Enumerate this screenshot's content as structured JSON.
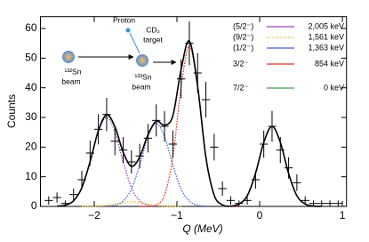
{
  "chart_data": {
    "type": "scatter",
    "x_label": "Q (MeV)",
    "y_label": "Counts",
    "xlim": [
      -2.65,
      1.05
    ],
    "ylim": [
      0,
      64
    ],
    "xticks": [
      {
        "value": -2,
        "label": "−2"
      },
      {
        "value": -1,
        "label": "−1"
      },
      0,
      1
    ],
    "yticks": [
      0,
      10,
      20,
      30,
      40,
      50,
      60
    ],
    "data": {
      "color": "#000000",
      "x_error": 0.05,
      "x": [
        -2.55,
        -2.45,
        -2.35,
        -2.25,
        -2.15,
        -2.05,
        -1.95,
        -1.85,
        -1.75,
        -1.65,
        -1.55,
        -1.45,
        -1.35,
        -1.25,
        -1.15,
        -1.05,
        -0.95,
        -0.85,
        -0.75,
        -0.65,
        -0.55,
        -0.45,
        -0.35,
        -0.25,
        -0.15,
        -0.05,
        0.05,
        0.15,
        0.25,
        0.35,
        0.45,
        0.55,
        0.65,
        0.75,
        0.85,
        0.95
      ],
      "values": [
        2,
        3,
        1,
        4,
        9,
        18,
        26,
        31,
        22,
        19,
        15,
        17,
        23,
        29,
        27,
        21,
        43,
        55,
        45,
        36,
        20,
        6,
        2,
        1,
        2,
        9,
        21,
        27,
        19,
        13,
        8,
        2,
        1,
        1,
        1,
        1
      ],
      "errors": [
        1.4,
        1.7,
        1,
        2,
        3,
        4.2,
        5.1,
        5.6,
        4.7,
        4.4,
        3.9,
        4.1,
        4.8,
        5.4,
        5.2,
        4.6,
        6.6,
        7.4,
        6.7,
        6,
        4.5,
        2.4,
        1.4,
        1,
        1.4,
        3,
        4.6,
        5.2,
        4.4,
        3.6,
        2.8,
        1.4,
        1,
        1,
        1,
        1
      ]
    },
    "fit": {
      "color": "#000000",
      "x": [
        -2.45,
        -2.35,
        -2.25,
        -2.15,
        -2.05,
        -1.95,
        -1.85,
        -1.75,
        -1.65,
        -1.55,
        -1.45,
        -1.35,
        -1.25,
        -1.15,
        -1.05,
        -0.95,
        -0.85,
        -0.75,
        -0.65,
        -0.55,
        -0.45,
        -0.35,
        -0.25,
        -0.15,
        -0.05,
        0.05,
        0.15,
        0.25,
        0.35,
        0.45,
        0.55,
        0.65,
        0.75
      ],
      "values": [
        0.1,
        0.4,
        1.9,
        6.3,
        15.1,
        25.5,
        30.9,
        26.9,
        18.3,
        13.5,
        16.7,
        24.2,
        28.7,
        27.4,
        30.5,
        46.1,
        55.8,
        40.6,
        16.6,
        3.8,
        0.5,
        0.1,
        0.8,
        3.6,
        11.1,
        21.6,
        27,
        21.6,
        11.1,
        3.6,
        0.8,
        0.1,
        0
      ]
    },
    "series": [
      {
        "name": "(5/2⁻)",
        "level": "2,005 keV",
        "color": "#a040c0",
        "legend_dotted": false,
        "x": [
          -2.45,
          -2.35,
          -2.25,
          -2.15,
          -2.05,
          -1.95,
          -1.85,
          -1.75,
          -1.65,
          -1.55,
          -1.45,
          -1.35,
          -1.25
        ],
        "values": [
          0.1,
          0.4,
          1.9,
          6.3,
          15,
          25.2,
          30,
          25.2,
          15,
          6.3,
          1.9,
          0.4,
          0.1
        ]
      },
      {
        "name": "(9/2⁻)",
        "level": "1,561 keV",
        "color": "#e8c020",
        "legend_dotted": true,
        "x": [
          -2.15,
          -2.05,
          -1.95,
          -1.85,
          -1.75,
          -1.65,
          -1.55,
          -1.45,
          -1.35,
          -1.25,
          -1.15,
          -1.05,
          -0.95
        ],
        "values": [
          0,
          0,
          0.1,
          0.3,
          0.8,
          1.3,
          1.5,
          1.3,
          0.8,
          0.3,
          0.1,
          0,
          0
        ]
      },
      {
        "name": "(1/2⁻)",
        "level": "1,363 keV",
        "color": "#4060d0",
        "legend_dotted": false,
        "x": [
          -1.85,
          -1.75,
          -1.65,
          -1.55,
          -1.45,
          -1.35,
          -1.25,
          -1.15,
          -1.05,
          -0.95,
          -0.85,
          -0.75,
          -0.65
        ],
        "values": [
          0.1,
          0.4,
          1.8,
          5.9,
          14,
          23.5,
          28,
          23.5,
          14,
          5.9,
          1.8,
          0.4,
          0.1
        ]
      },
      {
        "name": "3/2⁻",
        "level": "854 keV",
        "color": "#e03020",
        "legend_dotted": false,
        "x": [
          -1.45,
          -1.35,
          -1.25,
          -1.15,
          -1.05,
          -0.95,
          -0.85,
          -0.75,
          -0.65,
          -0.55,
          -0.45,
          -0.35,
          -0.25
        ],
        "values": [
          0,
          0,
          0.5,
          3.8,
          16.5,
          40.2,
          54,
          40.2,
          16.5,
          3.8,
          0.5,
          0,
          0
        ]
      },
      {
        "name": "7/2⁻",
        "level": "0 keV",
        "color": "#40a040",
        "legend_dotted": false,
        "x": [
          -0.45,
          -0.35,
          -0.25,
          -0.15,
          -0.05,
          0.05,
          0.15,
          0.25,
          0.35,
          0.45,
          0.55,
          0.65,
          0.75
        ],
        "values": [
          0,
          0.1,
          0.8,
          3.6,
          11.1,
          21.6,
          27,
          21.6,
          11.1,
          3.6,
          0.8,
          0.1,
          0
        ]
      }
    ],
    "inset": {
      "proton": "Proton",
      "target": [
        "CD₂",
        "target"
      ],
      "beam_in": [
        "¹³²Sn",
        "beam"
      ],
      "beam_out": [
        "¹³³Sn",
        "beam"
      ]
    }
  }
}
